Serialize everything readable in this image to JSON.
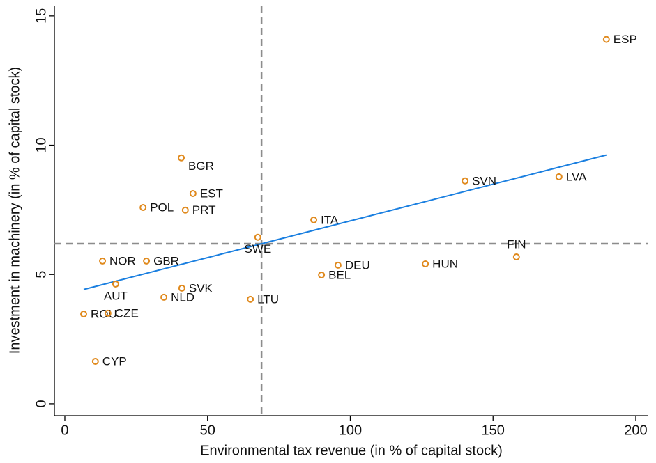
{
  "chart_data": {
    "type": "scatter",
    "xlabel": "Environmental tax revenue (in % of capital stock)",
    "ylabel": "Investment in machinery (in % of capital stock)",
    "labels": [
      "ESP",
      "BGR",
      "EST",
      "POL",
      "PRT",
      "ITA",
      "SWE",
      "SVN",
      "LVA",
      "FIN",
      "NOR",
      "GBR",
      "DEU",
      "HUN",
      "BEL",
      "AUT",
      "SVK",
      "NLD",
      "LTU",
      "ROU",
      "CZE",
      "CYP"
    ],
    "x": [
      189.7,
      40.8,
      44.9,
      27.4,
      42.2,
      87.2,
      67.6,
      140.2,
      173.1,
      158.2,
      13.2,
      28.6,
      95.7,
      126.3,
      89.9,
      17.8,
      41.0,
      34.7,
      65.0,
      6.6,
      15.1,
      10.7
    ],
    "y": [
      14.09,
      9.51,
      8.13,
      7.59,
      7.49,
      7.11,
      6.44,
      8.62,
      8.78,
      5.68,
      5.52,
      5.52,
      5.36,
      5.41,
      4.98,
      4.63,
      4.47,
      4.12,
      4.04,
      3.47,
      3.5,
      1.64
    ],
    "color": "#e08a1e",
    "fit_line": {
      "x": [
        6.6,
        189.7
      ],
      "y": [
        4.42,
        9.62
      ],
      "color": "#1a7fe0"
    },
    "xline": 68.9,
    "yline": 6.19,
    "ref_color": "#8c8c8c",
    "xlim": [
      -3.66,
      204.4
    ],
    "ylim": [
      -0.46,
      15.4
    ],
    "xticks": [
      0,
      50,
      100,
      150,
      200
    ],
    "yticks": [
      0,
      5,
      10,
      15
    ]
  }
}
